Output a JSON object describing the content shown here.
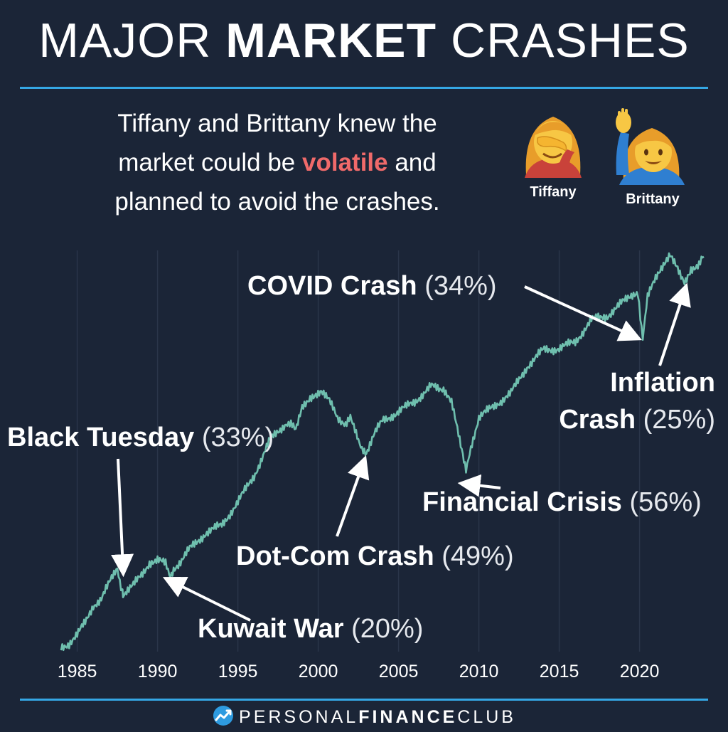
{
  "header": {
    "title_light_1": "MAJOR ",
    "title_bold": "MARKET",
    "title_light_2": " CRASHES"
  },
  "intro": {
    "line1": "Tiffany and Brittany knew the",
    "line2_pre": "market could be ",
    "line2_highlight": "volatile",
    "line2_post": " and",
    "line3": "planned to avoid the crashes."
  },
  "people": [
    {
      "name": "Tiffany",
      "icon": "facepalm-woman-icon"
    },
    {
      "name": "Brittany",
      "icon": "raising-hand-woman-icon"
    }
  ],
  "chart_data": {
    "type": "line",
    "x_ticks": [
      1985,
      1990,
      1995,
      2000,
      2005,
      2010,
      2015,
      2020
    ],
    "xlim": [
      1984,
      2024
    ],
    "y_scale": "log",
    "grid": "vertical",
    "series_color": "#6fbfae",
    "x": [
      1984.0,
      1984.5,
      1985.0,
      1985.5,
      1986.0,
      1986.5,
      1987.0,
      1987.5,
      1987.8,
      1987.85,
      1988.0,
      1988.5,
      1989.0,
      1989.5,
      1990.0,
      1990.5,
      1990.8,
      1991.0,
      1991.5,
      1992.0,
      1993.0,
      1994.0,
      1995.0,
      1996.0,
      1997.0,
      1998.0,
      1998.6,
      1999.0,
      1999.5,
      2000.2,
      2000.7,
      2001.2,
      2001.7,
      2002.0,
      2002.5,
      2002.8,
      2003.0,
      2003.5,
      2004.0,
      2005.0,
      2006.0,
      2007.0,
      2007.8,
      2008.3,
      2008.8,
      2009.2,
      2009.5,
      2010.0,
      2011.0,
      2012.0,
      2013.0,
      2014.0,
      2015.0,
      2016.0,
      2017.0,
      2018.0,
      2019.0,
      2019.9,
      2020.2,
      2020.5,
      2021.0,
      2021.9,
      2022.3,
      2022.8,
      2023.2,
      2023.7,
      2024.0
    ],
    "values": [
      162,
      168,
      180,
      200,
      232,
      245,
      280,
      320,
      260,
      255,
      260,
      275,
      300,
      335,
      340,
      330,
      300,
      318,
      340,
      375,
      430,
      460,
      560,
      700,
      950,
      1100,
      1050,
      1250,
      1380,
      1450,
      1320,
      1150,
      1100,
      1140,
      950,
      880,
      860,
      1000,
      1120,
      1210,
      1320,
      1500,
      1480,
      1300,
      950,
      720,
      900,
      1150,
      1280,
      1420,
      1780,
      2050,
      2080,
      2200,
      2650,
      2750,
      3100,
      3300,
      2300,
      3200,
      3800,
      4700,
      4200,
      3700,
      4100,
      4300,
      4550
    ],
    "annotations": [
      {
        "name": "Black Tuesday",
        "pct": "(33%)",
        "year": 1987.85
      },
      {
        "name": "Kuwait War",
        "pct": "(20%)",
        "year": 1990.8
      },
      {
        "name": "Dot-Com Crash",
        "pct": "(49%)",
        "year": 2002.8
      },
      {
        "name": "Financial Crisis",
        "pct": "(56%)",
        "year": 2009.2
      },
      {
        "name": "COVID Crash",
        "pct": "(34%)",
        "year": 2020.2
      },
      {
        "name": "Inflation",
        "name2": "Crash",
        "pct": "(25%)",
        "year": 2022.8
      }
    ]
  },
  "footer": {
    "brand_light_1": "PERSONAL",
    "brand_bold": "FINANCE",
    "brand_light_2": "CLUB",
    "logo_icon": "trend-chart-logo-icon"
  }
}
